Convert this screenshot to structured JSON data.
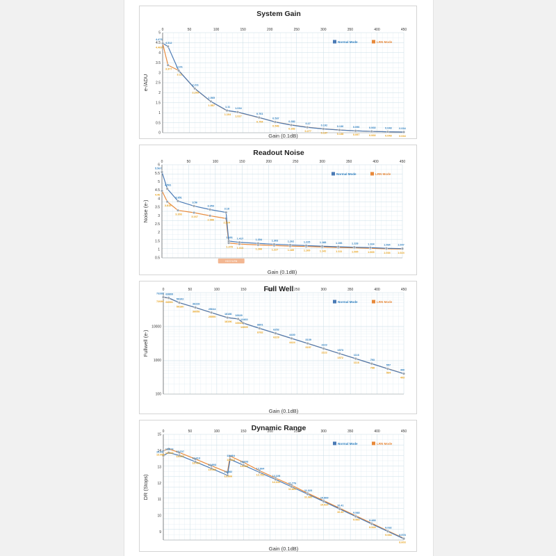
{
  "colors": {
    "normal": "#4a7ab5",
    "lrn": "#e8893a",
    "normal_label": "#2e7fbf",
    "lrn_label": "#e7a21d",
    "grid": "#d6e6ee",
    "annotation_bg": "#f3b792"
  },
  "chart_data": [
    {
      "type": "line",
      "title": "System Gain",
      "xlabel": "Gain (0.1dB)",
      "ylabel": "e-/ADU",
      "xlim": [
        0,
        450
      ],
      "ylim": [
        0,
        5
      ],
      "yscale": "linear",
      "x_ticks": [
        "0",
        "50",
        "100",
        "150",
        "200",
        "250",
        "300",
        "350",
        "400",
        "450"
      ],
      "y_ticks": [
        "0",
        "0.5",
        "1",
        "1.5",
        "2",
        "2.5",
        "3",
        "3.5",
        "4",
        "4.5",
        "5"
      ],
      "grid": true,
      "legend_position": "top-right",
      "series": [
        {
          "name": "Normal Mode",
          "x": [
            0,
            10,
            30,
            60,
            90,
            120,
            140,
            180,
            210,
            240,
            270,
            300,
            330,
            360,
            390,
            420,
            450
          ],
          "y": [
            4.473,
            4.312,
            3.101,
            2.211,
            1.565,
            1.11,
            1.034,
            0.761,
            0.537,
            0.382,
            0.27,
            0.192,
            0.136,
            0.096,
            0.068,
            0.048,
            0.034
          ],
          "labels": [
            "4.473",
            "4.312",
            "3.101",
            "2.211",
            "1.565",
            "1.11",
            "1.034",
            "0.761",
            "0.537",
            "0.382",
            "0.27",
            "0.192",
            "0.136",
            "0.096",
            "0.068",
            "0.048",
            "0.034"
          ]
        },
        {
          "name": "LRN Mode",
          "x": [
            0,
            10,
            30,
            60,
            90,
            120,
            140,
            180,
            210,
            240,
            270,
            300,
            330,
            360,
            390,
            420,
            450
          ],
          "y": [
            4.469,
            3.377,
            3.11,
            2.203,
            1.557,
            1.104,
            1.027,
            0.754,
            0.546,
            0.392,
            0.277,
            0.197,
            0.138,
            0.097,
            0.068,
            0.048,
            0.034
          ],
          "labels": [
            "4.469",
            "3.377",
            "3.11",
            "2.203",
            "1.557",
            "1.104",
            "1.027",
            "0.754",
            "0.546",
            "0.392",
            "0.277",
            "0.197",
            "0.138",
            "0.097",
            "0.068",
            "0.048",
            "0.034"
          ]
        }
      ]
    },
    {
      "type": "line",
      "title": "Readout Noise",
      "xlabel": "Gain (0.1dB)",
      "ylabel": "Noise (e-)",
      "xlim": [
        0,
        450
      ],
      "ylim": [
        0.5,
        6
      ],
      "yscale": "linear",
      "x_ticks": [
        "0",
        "50",
        "100",
        "150",
        "200",
        "250",
        "300",
        "350",
        "400",
        "450"
      ],
      "y_ticks": [
        "0.5",
        "1",
        "1.5",
        "2",
        "2.5",
        "3",
        "3.5",
        "4",
        "4.5",
        "5",
        "5.5",
        "6"
      ],
      "grid": true,
      "legend_position": "top-right",
      "annotation": "HCG+LRN",
      "series": [
        {
          "name": "Normal Mode",
          "x": [
            0,
            10,
            30,
            60,
            90,
            120,
            125,
            145,
            180,
            210,
            240,
            270,
            300,
            330,
            360,
            390,
            420,
            450
          ],
          "y": [
            5.567,
            4.581,
            3.851,
            3.56,
            3.353,
            3.18,
            1.491,
            1.417,
            1.354,
            1.303,
            1.262,
            1.225,
            1.188,
            1.156,
            1.128,
            1.104,
            1.064,
            1.047
          ],
          "labels": [
            "5.567",
            "4.581",
            "3.851",
            "3.56",
            "3.353",
            "3.18",
            "1.491",
            "1.417",
            "1.354",
            "1.303",
            "1.262",
            "1.225",
            "1.188",
            "1.156",
            "1.128",
            "1.104",
            "1.064",
            "1.047"
          ]
        },
        {
          "name": "LRN Mode",
          "x": [
            0,
            10,
            30,
            60,
            90,
            120,
            125,
            145,
            180,
            210,
            240,
            270,
            300,
            330,
            360,
            390,
            420,
            450
          ],
          "y": [
            4.46,
            3.815,
            3.303,
            3.167,
            2.986,
            2.824,
            1.378,
            1.314,
            1.266,
            1.227,
            1.189,
            1.169,
            1.142,
            1.111,
            1.095,
            1.065,
            1.034,
            1.024
          ],
          "labels": [
            "4.46",
            "3.815",
            "3.303",
            "3.167",
            "2.986",
            "2.824",
            "1.378",
            "1.314",
            "1.266",
            "1.227",
            "1.189",
            "1.169",
            "1.142",
            "1.111",
            "1.095",
            "1.065",
            "1.034",
            "1.024"
          ]
        }
      ]
    },
    {
      "type": "line",
      "title": "Full Well",
      "xlabel": "Gain (0.1dB)",
      "ylabel": "Fullwell (e-)",
      "xlim": [
        0,
        450
      ],
      "ylim": [
        100,
        100000
      ],
      "yscale": "log",
      "x_ticks": [
        "0",
        "50",
        "100",
        "150",
        "200",
        "250",
        "300",
        "350",
        "400",
        "450"
      ],
      "y_ticks": [
        "100",
        "1000",
        "10000"
      ],
      "grid": true,
      "legend_position": "top-right",
      "series": [
        {
          "name": "Normal Mode",
          "x": [
            0,
            10,
            30,
            60,
            90,
            120,
            140,
            150,
            180,
            210,
            240,
            270,
            300,
            330,
            360,
            390,
            420,
            450
          ],
          "y": [
            73289,
            69809,
            50102,
            36228,
            25644,
            18186,
            16620,
            12460,
            8801,
            6252,
            4430,
            3139,
            2222,
            1573,
            1116,
            793,
            557,
            400
          ],
          "labels": [
            "73289",
            "69809",
            "50102",
            "36228",
            "25644",
            "18186",
            "16620",
            "12460",
            "8801",
            "6252",
            "4430",
            "3139",
            "2222",
            "1573",
            "1116",
            "793",
            "557",
            "400"
          ]
        },
        {
          "name": "LRN Mode",
          "x": [
            0,
            10,
            30,
            60,
            90,
            120,
            140,
            150,
            180,
            210,
            240,
            270,
            300,
            330,
            360,
            390,
            420,
            450
          ],
          "y": [
            72089,
            68591,
            50160,
            36058,
            25550,
            18196,
            16664,
            12605,
            8782,
            6229,
            4424,
            3157,
            2222,
            1572,
            1116,
            788,
            564,
            403
          ],
          "labels": [
            "72089",
            "68591",
            "50160",
            "36058",
            "25550",
            "18196",
            "16664",
            "12605",
            "8782",
            "6229",
            "4424",
            "3157",
            "2222",
            "1572",
            "1116",
            "788",
            "564",
            "403"
          ]
        }
      ]
    },
    {
      "type": "line",
      "title": "Dynamic Range",
      "xlabel": "Gain (0.1dB)",
      "ylabel": "DR (Stops)",
      "xlim": [
        0,
        450
      ],
      "ylim": [
        8.5,
        15
      ],
      "yscale": "linear",
      "x_ticks": [
        "0",
        "50",
        "100",
        "150",
        "200",
        "250",
        "300",
        "350",
        "400",
        "450"
      ],
      "y_ticks": [
        "9",
        "10",
        "11",
        "12",
        "13",
        "14",
        "15"
      ],
      "grid": true,
      "legend_position": "top-right",
      "series": [
        {
          "name": "Normal Mode",
          "x": [
            0,
            10,
            30,
            60,
            90,
            120,
            125,
            150,
            180,
            210,
            240,
            270,
            300,
            330,
            360,
            390,
            420,
            450
          ],
          "y": [
            13.69,
            13.874,
            13.707,
            13.313,
            12.903,
            12.482,
            13.464,
            13.103,
            12.664,
            12.228,
            11.776,
            11.323,
            10.869,
            10.41,
            9.948,
            9.488,
            9.032,
            8.578
          ],
          "labels": [
            "13.69",
            "13.874",
            "13.707",
            "13.313",
            "12.903",
            "12.482",
            "13.464",
            "13.103",
            "12.664",
            "12.228",
            "11.776",
            "11.323",
            "10.869",
            "10.41",
            "9.948",
            "9.488",
            "9.032",
            "8.578"
          ]
        },
        {
          "name": "LRN Mode",
          "x": [
            0,
            10,
            30,
            60,
            90,
            120,
            125,
            150,
            180,
            210,
            240,
            270,
            300,
            330,
            360,
            390,
            420,
            450
          ],
          "y": [
            13.998,
            14.105,
            13.879,
            13.484,
            13.069,
            12.666,
            13.664,
            13.283,
            12.763,
            12.312,
            11.869,
            11.385,
            10.924,
            10.46,
            9.993,
            9.528,
            9.064,
            8.603
          ],
          "labels": [
            "13.998",
            "14.105",
            "13.879",
            "13.484",
            "13.069",
            "12.666",
            "13.664",
            "13.283",
            "12.763",
            "12.312",
            "11.869",
            "11.385",
            "10.924",
            "10.46",
            "9.993",
            "9.528",
            "9.064",
            "8.603"
          ]
        }
      ]
    }
  ]
}
